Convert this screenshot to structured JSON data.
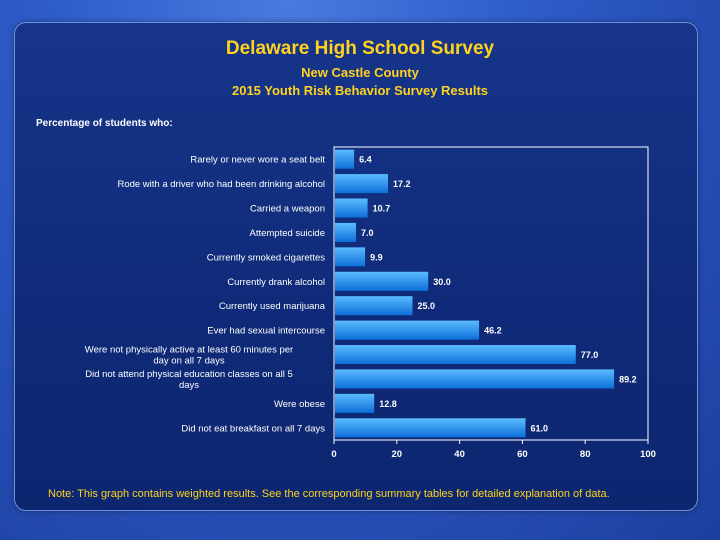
{
  "header": {
    "title": "Delaware High School Survey",
    "subtitle": "New Castle County",
    "subtitle2": "2015 Youth Risk Behavior Survey Results"
  },
  "subheading": "Percentage of students who:",
  "note": "Note: This graph contains weighted results. See the corresponding summary tables for detailed explanation of data.",
  "colors": {
    "title": "#ffd21f",
    "bar_top": "#5bbcff",
    "bar_bottom": "#0d6fd8",
    "text": "#ffffff"
  },
  "chart_data": {
    "type": "bar",
    "orientation": "horizontal",
    "categories": [
      "Rarely or never wore a seat belt",
      "Rode with a driver who had been drinking alcohol",
      "Carried a weapon",
      "Attempted suicide",
      "Currently smoked cigarettes",
      "Currently drank alcohol",
      "Currently used marijuana",
      "Ever had sexual intercourse",
      "Were not physically active at least 60 minutes per day on all 7 days",
      "Did not attend physical education classes on all 5 days",
      "Were obese",
      "Did not eat breakfast on all 7 days"
    ],
    "values": [
      6.4,
      17.2,
      10.7,
      7.0,
      9.9,
      30.0,
      25.0,
      46.2,
      77.0,
      89.2,
      12.8,
      61.0
    ],
    "value_labels": [
      "6.4",
      "17.2",
      "10.7",
      "7.0",
      "9.9",
      "30.0",
      "25.0",
      "46.2",
      "77.0",
      "89.2",
      "12.8",
      "61.0"
    ],
    "xlim": [
      0,
      100
    ],
    "xticks": [
      "0",
      "20",
      "40",
      "60",
      "80",
      "100"
    ],
    "title": "Delaware High School Survey",
    "xlabel": "",
    "ylabel": ""
  }
}
